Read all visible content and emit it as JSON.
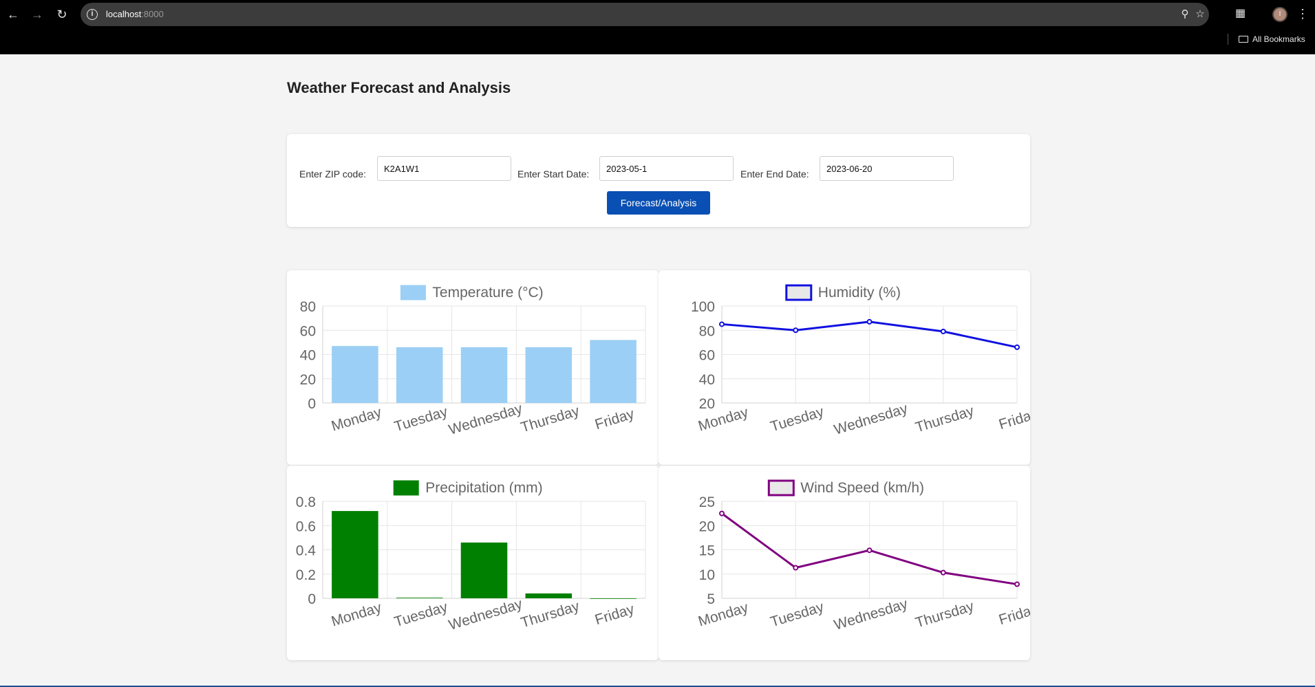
{
  "browser": {
    "url_host": "localhost",
    "url_port": ":8000",
    "bookmarks_label": "All Bookmarks",
    "avatar_initial": "I",
    "icons": [
      "back-icon",
      "forward-icon",
      "reload-icon",
      "info-icon",
      "zoom-icon",
      "star-icon",
      "extensions-icon",
      "menu-icon",
      "folder-icon"
    ]
  },
  "page": {
    "title": "Weather Forecast and Analysis"
  },
  "form": {
    "zip_label": "Enter ZIP code:",
    "zip_value": "K2A1W1",
    "start_label": "Enter Start Date:",
    "start_value": "2023-05-1",
    "end_label": "Enter End Date:",
    "end_value": "2023-06-20",
    "button_label": "Forecast/Analysis",
    "button_color": "#0a4fb3"
  },
  "chart_data": [
    {
      "id": "temperature",
      "type": "bar",
      "title": "Temperature (°C)",
      "categories": [
        "Monday",
        "Tuesday",
        "Wednesday",
        "Thursday",
        "Friday"
      ],
      "values": [
        47,
        46,
        46,
        46,
        52
      ],
      "ylim": [
        0,
        80
      ],
      "yticks": [
        0,
        20,
        40,
        60,
        80
      ],
      "ytick_labels": [
        "0",
        "20",
        "40",
        "60",
        "80"
      ],
      "color": "#9ccff5",
      "border": "#9ccff5"
    },
    {
      "id": "humidity",
      "type": "line",
      "title": "Humidity (%)",
      "categories": [
        "Monday",
        "Tuesday",
        "Wednesday",
        "Thursday",
        "Friday"
      ],
      "values": [
        85,
        80,
        87,
        79,
        66
      ],
      "ylim": [
        20,
        100
      ],
      "yticks": [
        20,
        40,
        60,
        80,
        100
      ],
      "ytick_labels": [
        "20",
        "40",
        "60",
        "80",
        "100"
      ],
      "color": "#1010e0",
      "border": "#1010e0"
    },
    {
      "id": "precipitation",
      "type": "bar",
      "title": "Precipitation (mm)",
      "categories": [
        "Monday",
        "Tuesday",
        "Wednesday",
        "Thursday",
        "Friday"
      ],
      "values": [
        0.72,
        0.005,
        0.46,
        0.04,
        0
      ],
      "ylim": [
        0,
        0.8
      ],
      "yticks": [
        0,
        0.2,
        0.4,
        0.6,
        0.8
      ],
      "ytick_labels": [
        "0",
        "0.2",
        "0.4",
        "0.6",
        "0.8"
      ],
      "color": "#008000",
      "border": "#008000"
    },
    {
      "id": "windspeed",
      "type": "line",
      "title": "Wind Speed (km/h)",
      "categories": [
        "Monday",
        "Tuesday",
        "Wednesday",
        "Thursday",
        "Friday"
      ],
      "values": [
        22.5,
        11.3,
        14.9,
        10.3,
        7.9
      ],
      "ylim": [
        5,
        25
      ],
      "yticks": [
        5,
        10,
        15,
        20,
        25
      ],
      "ytick_labels": [
        "5",
        "10",
        "15",
        "20",
        "25"
      ],
      "color": "#800080",
      "border": "#800080"
    }
  ]
}
